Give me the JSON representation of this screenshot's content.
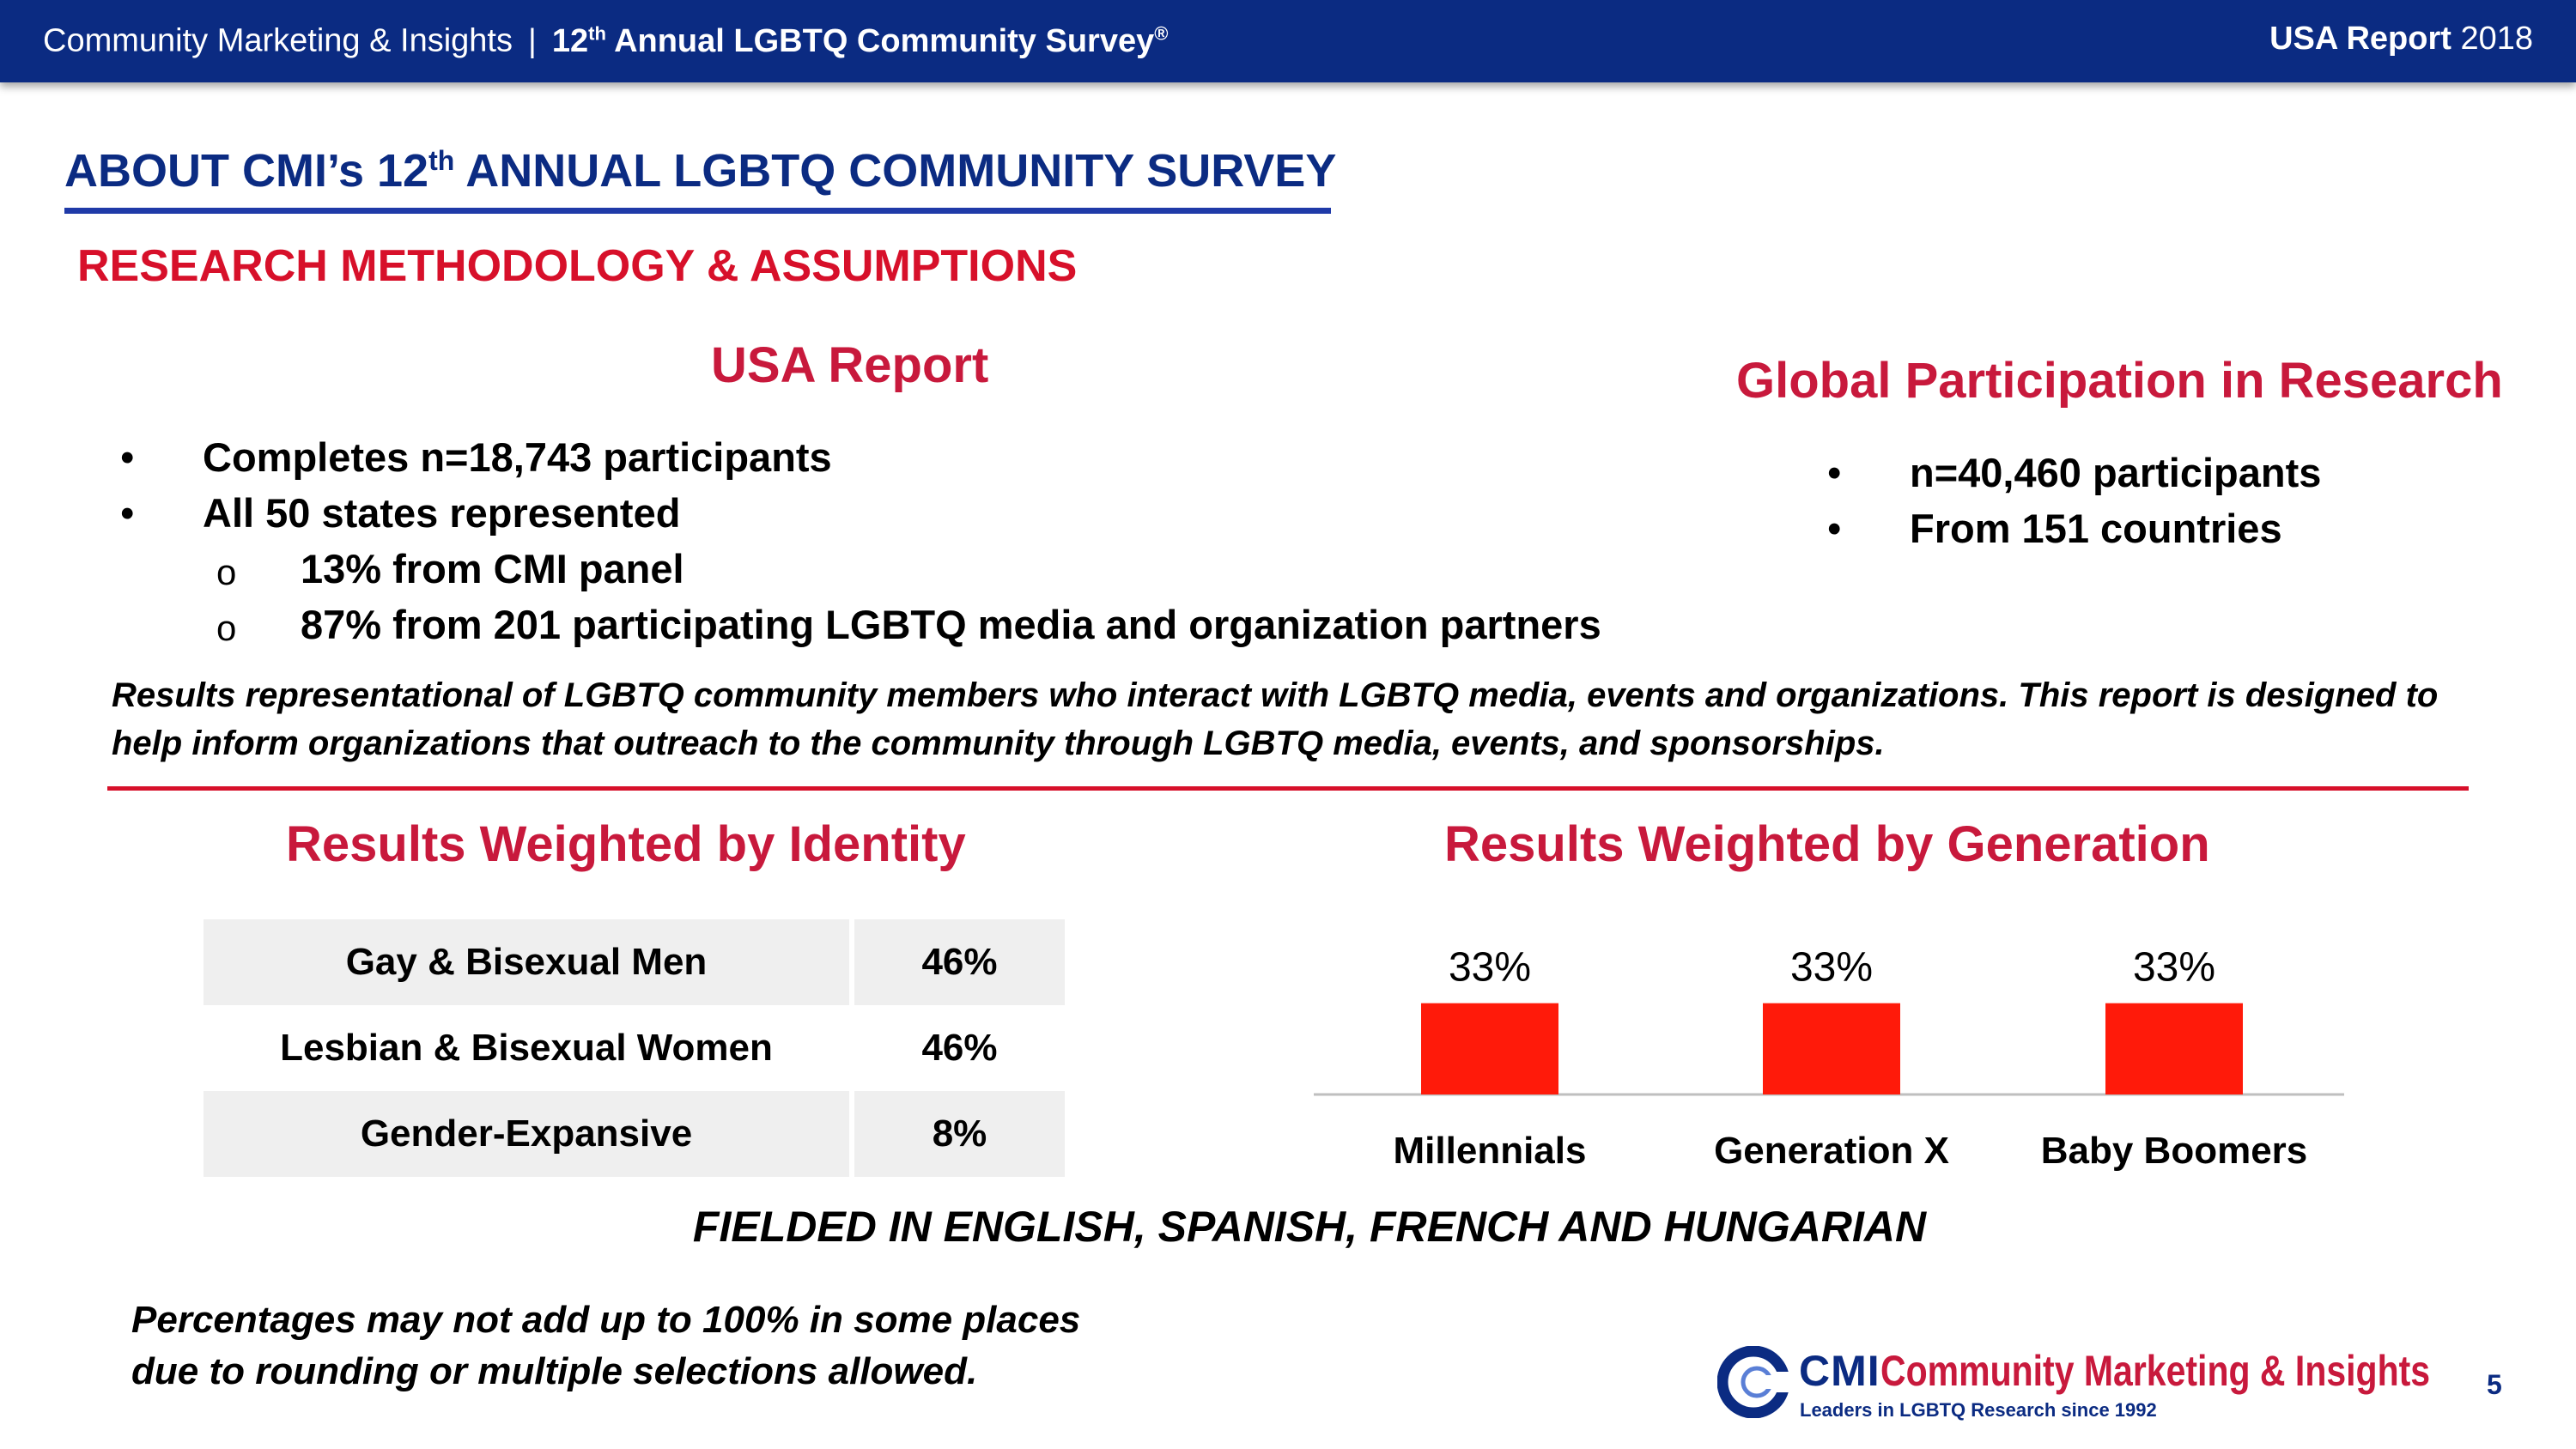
{
  "header": {
    "company": "Community Marketing & Insights",
    "separator": "|",
    "survey_prefix": "12",
    "survey_suffix": "th",
    "survey_name": "Annual LGBTQ Community Survey",
    "survey_mark": "®",
    "report_label": "USA Report",
    "report_year": "2018"
  },
  "title": {
    "prefix": "ABOUT CMI’s 12",
    "suffix": "th",
    "rest": "ANNUAL LGBTQ COMMUNITY SURVEY"
  },
  "subtitle": "RESEARCH METHODOLOGY & ASSUMPTIONS",
  "usa_report": {
    "heading": "USA Report",
    "items": [
      {
        "marker": "•",
        "text": "Completes n=18,743 participants"
      },
      {
        "marker": "•",
        "text": "All 50 states represented"
      },
      {
        "marker": "o",
        "text": "13% from CMI panel"
      },
      {
        "marker": "o",
        "text": "87% from 201 participating LGBTQ media and organization partners"
      }
    ]
  },
  "global": {
    "heading": "Global Participation in Research",
    "items": [
      {
        "marker": "•",
        "text": "n=40,460 participants"
      },
      {
        "marker": "•",
        "text": "From 151 countries"
      }
    ]
  },
  "note": "Results representational of LGBTQ community members who interact with LGBTQ media, events and organizations. This report is designed to help inform organizations that outreach to the community through LGBTQ media, events, and sponsorships.",
  "identity": {
    "heading": "Results Weighted by  Identity",
    "rows": [
      {
        "label": "Gay & Bisexual Men",
        "value": "46%"
      },
      {
        "label": "Lesbian & Bisexual Women",
        "value": "46%"
      },
      {
        "label": "Gender-Expansive",
        "value": "8%"
      }
    ]
  },
  "generation": {
    "heading": "Results Weighted by Generation"
  },
  "chart_data": {
    "type": "bar",
    "title": "Results Weighted by Generation",
    "categories": [
      "Millennials",
      "Generation X",
      "Baby Boomers"
    ],
    "values": [
      33,
      33,
      33
    ],
    "value_labels": [
      "33%",
      "33%",
      "33%"
    ],
    "xlabel": "",
    "ylabel": "",
    "ylim": [
      0,
      100
    ],
    "grid": false,
    "bar_color": "#ff1a0a"
  },
  "fielded": "FIELDED IN ENGLISH, SPANISH, FRENCH AND HUNGARIAN",
  "footnote": {
    "line1": "Percentages may not add up to 100% in some places",
    "line2": "due to rounding or multiple selections allowed."
  },
  "logo": {
    "abbr": "CMI",
    "name": "Community Marketing & Insights",
    "tagline": "Leaders in LGBTQ Research since 1992"
  },
  "page_number": "5",
  "colors": {
    "navy": "#0b2b82",
    "red": "#c8193c",
    "bar": "#ff1a0a"
  }
}
